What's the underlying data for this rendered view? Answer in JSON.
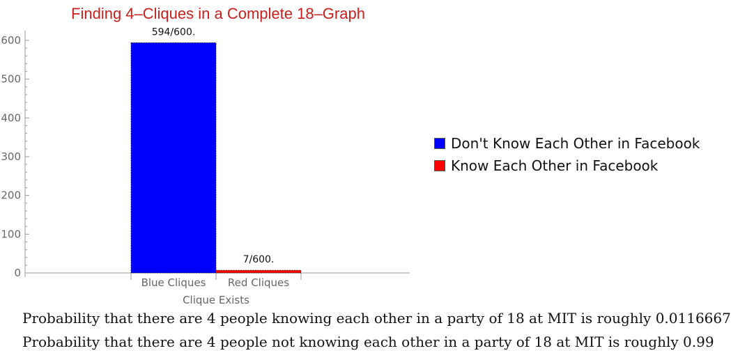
{
  "chart_data": {
    "type": "bar",
    "title": "Finding 4–Cliques in a Complete 18–Graph",
    "xlabel": "Clique Exists",
    "ylabel": "",
    "categories": [
      "Blue Cliques",
      "Red Cliques"
    ],
    "values": [
      594,
      7
    ],
    "data_labels": [
      "594/600.",
      "7/600."
    ],
    "colors": [
      "#0000ff",
      "#ff0000"
    ],
    "ylim": [
      0,
      600
    ],
    "yticks": [
      0,
      100,
      200,
      300,
      400,
      500,
      600
    ],
    "grid": false,
    "legend_position": "right"
  },
  "legend": {
    "items": [
      {
        "label": "Don't Know Each Other in Facebook",
        "color": "#0000ff"
      },
      {
        "label": "Know Each Other in Facebook",
        "color": "#ff0000"
      }
    ]
  },
  "captions": [
    "Probability that there are 4 people knowing each other in a party of 18 at MIT is roughly 0.0116667",
    "Probability that there are 4 people not knowing each other in a party of 18 at MIT is roughly 0.99"
  ]
}
